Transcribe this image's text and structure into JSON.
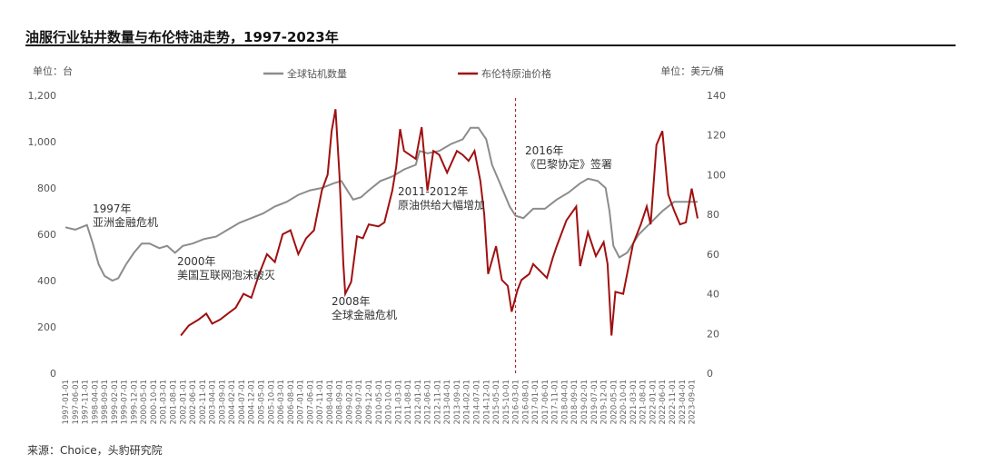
{
  "title": "油服行业钻井数量与布伦特油走势，1997-2023年",
  "source": "来源：Choice，头豹研究院",
  "colors": {
    "rig": "#8c8c8c",
    "brent": "#a01010",
    "divider": "#a01010"
  },
  "chart_data": {
    "type": "line",
    "left_unit": "单位：台",
    "right_unit": "单位：美元/桶",
    "y_left_ticks": [
      "0",
      "200",
      "400",
      "600",
      "800",
      "1,000",
      "1,200"
    ],
    "y_right_ticks": [
      "0",
      "20",
      "40",
      "60",
      "80",
      "100",
      "120",
      "140"
    ],
    "ylim_left": [
      0,
      1200
    ],
    "ylim_right": [
      0,
      140
    ],
    "xlim": [
      "1997-01",
      "2023-12"
    ],
    "x_ticks": [
      "1997-01-01",
      "1997-06-01",
      "1997-11-01",
      "1998-04-01",
      "1998-09-01",
      "1999-02-01",
      "1999-07-01",
      "1999-12-01",
      "2000-05-01",
      "2000-10-01",
      "2001-03-01",
      "2001-08-01",
      "2002-01-01",
      "2002-06-01",
      "2002-11-01",
      "2003-04-01",
      "2003-09-01",
      "2004-02-01",
      "2004-07-01",
      "2004-12-01",
      "2005-05-01",
      "2005-10-01",
      "2006-03-01",
      "2006-08-01",
      "2007-01-01",
      "2007-06-01",
      "2007-11-01",
      "2008-04-01",
      "2008-09-01",
      "2009-02-01",
      "2009-07-01",
      "2009-12-01",
      "2010-05-01",
      "2010-10-01",
      "2011-03-01",
      "2011-08-01",
      "2012-01-01",
      "2012-06-01",
      "2012-11-01",
      "2013-04-01",
      "2013-09-01",
      "2014-02-01",
      "2014-07-01",
      "2014-12-01",
      "2015-05-01",
      "2015-10-01",
      "2016-03-01",
      "2016-08-01",
      "2017-01-01",
      "2017-06-01",
      "2017-11-01",
      "2018-04-01",
      "2018-09-01",
      "2019-02-01",
      "2019-07-01",
      "2019-12-01",
      "2020-05-01",
      "2020-10-01",
      "2021-03-01",
      "2021-08-01",
      "2022-01-01",
      "2022-06-01",
      "2022-11-01",
      "2023-04-01",
      "2023-09-01"
    ],
    "grid": false,
    "legend_position": "top-center",
    "series": [
      {
        "name": "全球钻机数量",
        "axis": "left",
        "points": [
          [
            "1997-01",
            630
          ],
          [
            "1997-06",
            620
          ],
          [
            "1997-12",
            640
          ],
          [
            "1998-03",
            560
          ],
          [
            "1998-06",
            470
          ],
          [
            "1998-09",
            420
          ],
          [
            "1999-01",
            400
          ],
          [
            "1999-04",
            410
          ],
          [
            "1999-08",
            470
          ],
          [
            "1999-12",
            520
          ],
          [
            "2000-04",
            560
          ],
          [
            "2000-08",
            560
          ],
          [
            "2001-01",
            540
          ],
          [
            "2001-05",
            550
          ],
          [
            "2001-09",
            520
          ],
          [
            "2002-01",
            550
          ],
          [
            "2002-06",
            560
          ],
          [
            "2002-12",
            580
          ],
          [
            "2003-06",
            590
          ],
          [
            "2003-12",
            620
          ],
          [
            "2004-06",
            650
          ],
          [
            "2004-12",
            670
          ],
          [
            "2005-06",
            690
          ],
          [
            "2005-12",
            720
          ],
          [
            "2006-06",
            740
          ],
          [
            "2006-12",
            770
          ],
          [
            "2007-06",
            790
          ],
          [
            "2007-12",
            800
          ],
          [
            "2008-06",
            820
          ],
          [
            "2008-10",
            830
          ],
          [
            "2009-01",
            790
          ],
          [
            "2009-04",
            750
          ],
          [
            "2009-08",
            760
          ],
          [
            "2009-12",
            790
          ],
          [
            "2010-06",
            830
          ],
          [
            "2010-12",
            850
          ],
          [
            "2011-06",
            880
          ],
          [
            "2011-12",
            900
          ],
          [
            "2012-02",
            960
          ],
          [
            "2012-06",
            950
          ],
          [
            "2012-12",
            960
          ],
          [
            "2013-06",
            990
          ],
          [
            "2013-12",
            1010
          ],
          [
            "2014-04",
            1060
          ],
          [
            "2014-08",
            1060
          ],
          [
            "2014-12",
            1010
          ],
          [
            "2015-03",
            900
          ],
          [
            "2015-07",
            820
          ],
          [
            "2015-12",
            720
          ],
          [
            "2016-03",
            680
          ],
          [
            "2016-07",
            670
          ],
          [
            "2016-12",
            710
          ],
          [
            "2017-06",
            710
          ],
          [
            "2017-12",
            750
          ],
          [
            "2018-06",
            780
          ],
          [
            "2018-12",
            820
          ],
          [
            "2019-04",
            840
          ],
          [
            "2019-09",
            830
          ],
          [
            "2020-01",
            800
          ],
          [
            "2020-03",
            700
          ],
          [
            "2020-05",
            550
          ],
          [
            "2020-08",
            500
          ],
          [
            "2020-12",
            520
          ],
          [
            "2021-06",
            600
          ],
          [
            "2021-12",
            650
          ],
          [
            "2022-06",
            700
          ],
          [
            "2022-12",
            740
          ],
          [
            "2023-06",
            740
          ],
          [
            "2023-12",
            740
          ]
        ]
      },
      {
        "name": "布伦特原油价格",
        "axis": "right",
        "points": [
          [
            "2001-12",
            19
          ],
          [
            "2002-04",
            24
          ],
          [
            "2002-09",
            27
          ],
          [
            "2003-01",
            30
          ],
          [
            "2003-04",
            25
          ],
          [
            "2003-08",
            27
          ],
          [
            "2003-12",
            30
          ],
          [
            "2004-04",
            33
          ],
          [
            "2004-08",
            40
          ],
          [
            "2004-12",
            38
          ],
          [
            "2005-04",
            50
          ],
          [
            "2005-08",
            60
          ],
          [
            "2005-12",
            56
          ],
          [
            "2006-04",
            70
          ],
          [
            "2006-08",
            72
          ],
          [
            "2006-12",
            60
          ],
          [
            "2007-04",
            68
          ],
          [
            "2007-08",
            72
          ],
          [
            "2007-12",
            92
          ],
          [
            "2008-03",
            100
          ],
          [
            "2008-05",
            122
          ],
          [
            "2008-07",
            133
          ],
          [
            "2008-09",
            100
          ],
          [
            "2008-11",
            55
          ],
          [
            "2008-12",
            40
          ],
          [
            "2009-03",
            46
          ],
          [
            "2009-06",
            69
          ],
          [
            "2009-09",
            68
          ],
          [
            "2009-12",
            75
          ],
          [
            "2010-05",
            74
          ],
          [
            "2010-08",
            76
          ],
          [
            "2010-12",
            92
          ],
          [
            "2011-02",
            104
          ],
          [
            "2011-04",
            123
          ],
          [
            "2011-06",
            112
          ],
          [
            "2011-09",
            110
          ],
          [
            "2011-12",
            108
          ],
          [
            "2012-03",
            124
          ],
          [
            "2012-06",
            92
          ],
          [
            "2012-09",
            112
          ],
          [
            "2012-12",
            110
          ],
          [
            "2013-04",
            101
          ],
          [
            "2013-09",
            112
          ],
          [
            "2013-12",
            110
          ],
          [
            "2014-03",
            107
          ],
          [
            "2014-06",
            112
          ],
          [
            "2014-09",
            97
          ],
          [
            "2014-11",
            80
          ],
          [
            "2015-01",
            50
          ],
          [
            "2015-05",
            64
          ],
          [
            "2015-08",
            47
          ],
          [
            "2015-11",
            44
          ],
          [
            "2016-01",
            31
          ],
          [
            "2016-04",
            42
          ],
          [
            "2016-06",
            47
          ],
          [
            "2016-10",
            50
          ],
          [
            "2016-12",
            55
          ],
          [
            "2017-05",
            50
          ],
          [
            "2017-07",
            48
          ],
          [
            "2017-10",
            58
          ],
          [
            "2017-12",
            64
          ],
          [
            "2018-05",
            77
          ],
          [
            "2018-10",
            84
          ],
          [
            "2018-12",
            54
          ],
          [
            "2019-04",
            71
          ],
          [
            "2019-08",
            59
          ],
          [
            "2019-12",
            66
          ],
          [
            "2020-02",
            55
          ],
          [
            "2020-04",
            19
          ],
          [
            "2020-06",
            41
          ],
          [
            "2020-10",
            40
          ],
          [
            "2020-12",
            50
          ],
          [
            "2021-03",
            65
          ],
          [
            "2021-07",
            75
          ],
          [
            "2021-10",
            84
          ],
          [
            "2021-12",
            75
          ],
          [
            "2022-03",
            115
          ],
          [
            "2022-06",
            122
          ],
          [
            "2022-09",
            90
          ],
          [
            "2022-12",
            82
          ],
          [
            "2023-03",
            75
          ],
          [
            "2023-06",
            76
          ],
          [
            "2023-09",
            93
          ],
          [
            "2023-12",
            78
          ]
        ]
      }
    ],
    "annotations": [
      {
        "lines": [
          "1997年",
          "亚洲金融危机"
        ]
      },
      {
        "lines": [
          "2000年",
          "美国互联网泡沫破灭"
        ]
      },
      {
        "lines": [
          "2008年",
          "全球金融危机"
        ]
      },
      {
        "lines": [
          "2011-2012年",
          "原油供给大幅增加"
        ]
      },
      {
        "lines": [
          "2016年",
          "《巴黎协定》签署"
        ]
      }
    ],
    "vertical_marker": "2016-03"
  }
}
